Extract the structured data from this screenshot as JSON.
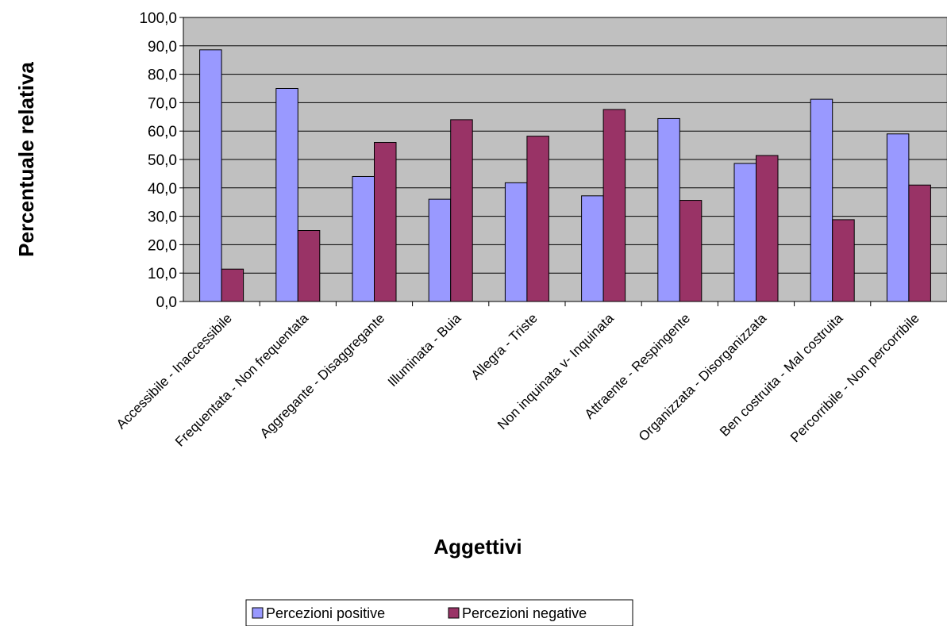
{
  "chart_data": {
    "type": "bar",
    "title": "",
    "xlabel": "Aggettivi",
    "ylabel": "Percentuale relativa",
    "ylim": [
      0,
      100
    ],
    "ytick_step": 10,
    "ytick_labels": [
      "0,0",
      "10,0",
      "20,0",
      "30,0",
      "40,0",
      "50,0",
      "60,0",
      "70,0",
      "80,0",
      "90,0",
      "100,0"
    ],
    "categories": [
      "Accessibile - Inaccessibile",
      "Frequentata - Non frequentata",
      "Aggregante - Disaggregante",
      "Illuminata - Buia",
      "Allegra - Triste",
      "Non inquinata v- Inquinata",
      "Attraente - Respingente",
      "Organizzata - Disorganizzata",
      "Ben costruita - Mal costruita",
      "Percorribile - Non percorribile"
    ],
    "series": [
      {
        "name": "Percezioni positive",
        "color": "#9999ff",
        "values": [
          88.6,
          75.0,
          44.0,
          36.0,
          41.8,
          37.2,
          64.4,
          48.6,
          71.2,
          59.0
        ]
      },
      {
        "name": "Percezioni negative",
        "color": "#993366",
        "values": [
          11.4,
          25.0,
          56.0,
          64.0,
          58.2,
          67.6,
          35.6,
          51.4,
          28.8,
          41.0
        ]
      }
    ],
    "grid": true,
    "plot_background": "#c0c0c0",
    "legend_position": "bottom"
  }
}
